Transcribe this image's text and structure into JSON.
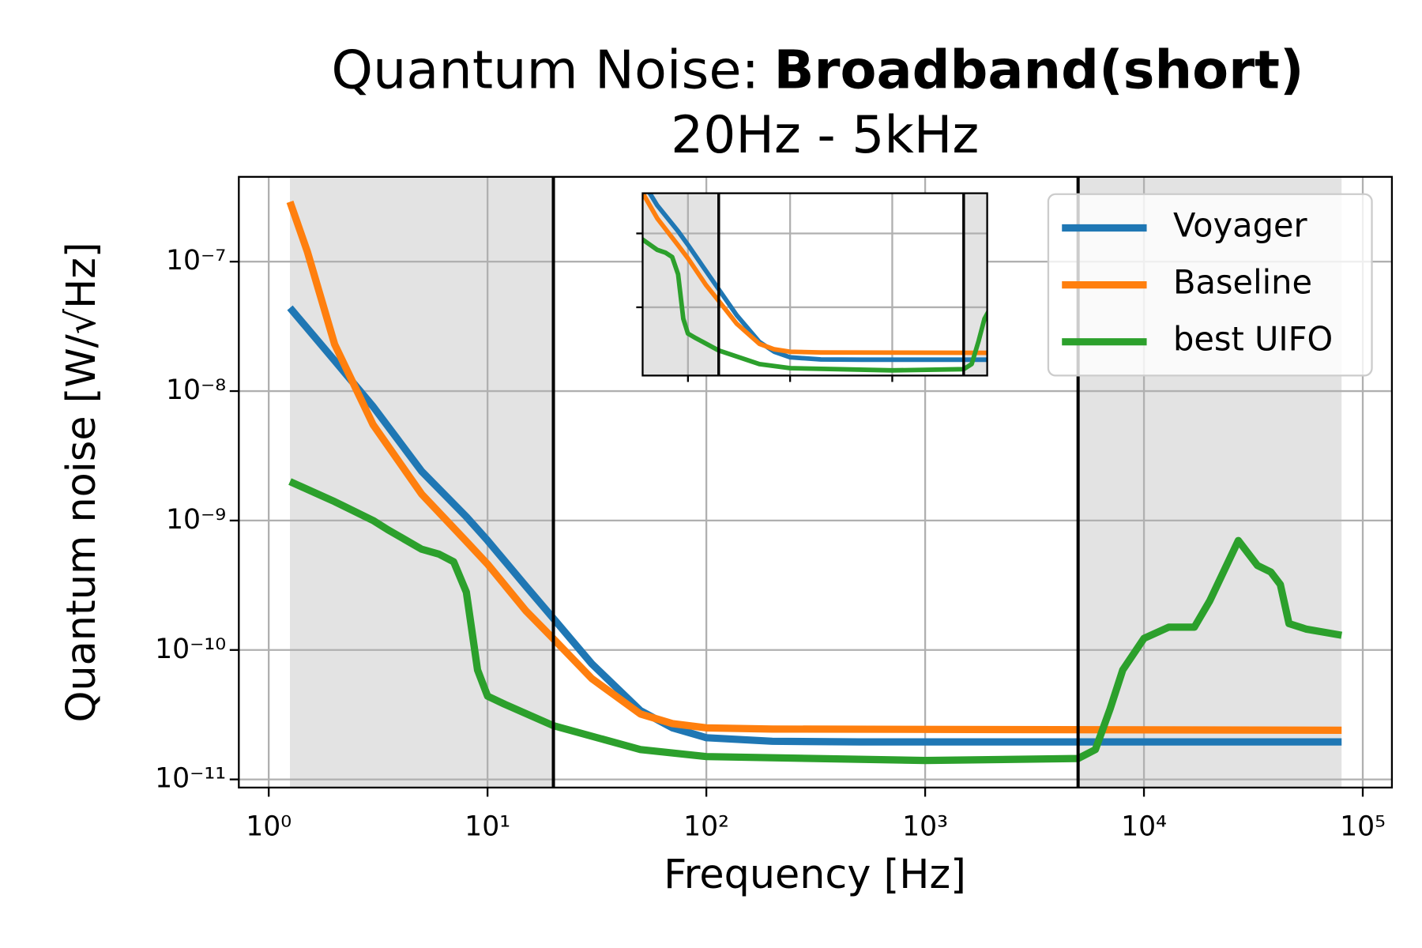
{
  "chart_data": {
    "type": "line",
    "title": [
      "Quantum Noise:",
      "Broadband(short)"
    ],
    "subtitle": "20Hz - 5kHz",
    "xlabel": "Frequency [Hz]",
    "ylabel": "Quantum noise [W/√Hz]",
    "xscale": "log",
    "yscale": "log",
    "xlim": [
      0.73,
      135900
    ],
    "ylim": [
      8.65e-12,
      4.52e-07
    ],
    "xticks": [
      {
        "value": 1,
        "label": "10⁰"
      },
      {
        "value": 10,
        "label": "10¹"
      },
      {
        "value": 100,
        "label": "10²"
      },
      {
        "value": 1000,
        "label": "10³"
      },
      {
        "value": 10000,
        "label": "10⁴"
      },
      {
        "value": 100000,
        "label": "10⁵"
      }
    ],
    "yticks": [
      {
        "value": 1e-11,
        "label": "10⁻¹¹"
      },
      {
        "value": 1e-10,
        "label": "10⁻¹⁰"
      },
      {
        "value": 1e-09,
        "label": "10⁻⁹"
      },
      {
        "value": 1e-08,
        "label": "10⁻⁸"
      },
      {
        "value": 1e-07,
        "label": "10⁻⁷"
      }
    ],
    "grid": true,
    "legend": "upper right",
    "shaded_regions": [
      [
        1.25,
        20
      ],
      [
        5000,
        80000
      ]
    ],
    "shade_color": "#e3e3e3",
    "vlines": [
      20,
      5000
    ],
    "vline_color": "#000000",
    "series": [
      {
        "name": "Voyager",
        "color": "#1f77b4",
        "x": [
          1.25,
          2,
          3,
          5,
          8,
          10,
          15,
          20,
          30,
          50,
          70,
          100,
          200,
          500,
          80000
        ],
        "values": [
          4.4e-08,
          1.72e-08,
          7.6e-09,
          2.4e-09,
          1.07e-09,
          7e-10,
          3.1e-10,
          1.75e-10,
          7.8e-11,
          3.4e-11,
          2.5e-11,
          2.1e-11,
          1.97e-11,
          1.95e-11,
          1.95e-11
        ]
      },
      {
        "name": "Baseline",
        "color": "#ff7f0e",
        "x": [
          1.25,
          1.5,
          2,
          3,
          5,
          8,
          10,
          15,
          20,
          30,
          50,
          70,
          100,
          200,
          80000
        ],
        "values": [
          2.9e-07,
          1.2e-07,
          2.3e-08,
          5.5e-09,
          1.6e-09,
          6.9e-10,
          4.6e-10,
          2e-10,
          1.22e-10,
          6e-11,
          3.2e-11,
          2.7e-11,
          2.5e-11,
          2.45e-11,
          2.4e-11
        ]
      },
      {
        "name": "best UIFO",
        "color": "#2ca02c",
        "x": [
          1.25,
          2,
          3,
          3.5,
          5,
          6,
          7,
          8,
          9,
          10,
          12,
          20,
          50,
          100,
          1000,
          5000,
          6000,
          7000,
          8000,
          10000,
          13000,
          17000,
          20000,
          27000,
          33000,
          38000,
          42000,
          46000,
          55000,
          80000
        ],
        "values": [
          2e-09,
          1.4e-09,
          1e-09,
          8.5e-10,
          6e-10,
          5.5e-10,
          4.8e-10,
          2.8e-10,
          7e-11,
          4.4e-11,
          3.8e-11,
          2.6e-11,
          1.7e-11,
          1.5e-11,
          1.4e-11,
          1.45e-11,
          1.7e-11,
          3.5e-11,
          7e-11,
          1.23e-10,
          1.5e-10,
          1.5e-10,
          2.4e-10,
          7e-10,
          4.5e-10,
          4e-10,
          3.2e-10,
          1.6e-10,
          1.45e-10,
          1.3e-10
        ]
      }
    ],
    "inset": {
      "xlim": [
        3.6,
        8500
      ],
      "ylim": [
        1.19e-11,
        3.5e-09
      ],
      "xticks": [
        10,
        100,
        1000
      ],
      "yticks": [
        1e-10,
        1e-09
      ]
    }
  }
}
